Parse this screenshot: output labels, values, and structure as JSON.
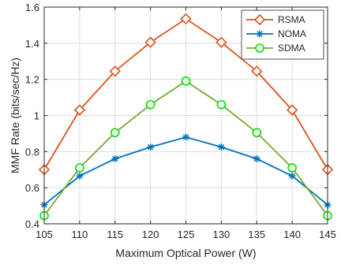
{
  "chart_data": {
    "type": "line",
    "title": "",
    "xlabel": "Maximum Optical Power (W)",
    "ylabel": "MMF Rate (bits/sec/Hz)",
    "x": [
      105,
      110,
      115,
      120,
      125,
      130,
      135,
      140,
      145
    ],
    "x_tick_labels": [
      "105",
      "110",
      "115",
      "120",
      "125",
      "130",
      "135",
      "140",
      "145"
    ],
    "y_tick_labels": [
      "0.4",
      "0.6",
      "0.8",
      "1",
      "1.2",
      "1.4",
      "1.6"
    ],
    "y_ticks": [
      0.4,
      0.6,
      0.8,
      1.0,
      1.2,
      1.4,
      1.6
    ],
    "xlim": [
      105,
      145
    ],
    "ylim": [
      0.4,
      1.6
    ],
    "grid": true,
    "legend_position": "top-right",
    "series": [
      {
        "name": "RSMA",
        "color": "#d95319",
        "marker": "diamond",
        "values": [
          0.7,
          1.03,
          1.245,
          1.405,
          1.535,
          1.405,
          1.245,
          1.03,
          0.7
        ]
      },
      {
        "name": "NOMA",
        "color": "#0072bd",
        "marker": "asterisk",
        "values": [
          0.505,
          0.665,
          0.76,
          0.825,
          0.88,
          0.825,
          0.76,
          0.665,
          0.505
        ]
      },
      {
        "name": "SDMA",
        "color": "#77ac30",
        "marker_color": "#00e000",
        "marker": "circle",
        "values": [
          0.445,
          0.71,
          0.905,
          1.06,
          1.19,
          1.06,
          0.905,
          0.71,
          0.445
        ]
      }
    ]
  }
}
